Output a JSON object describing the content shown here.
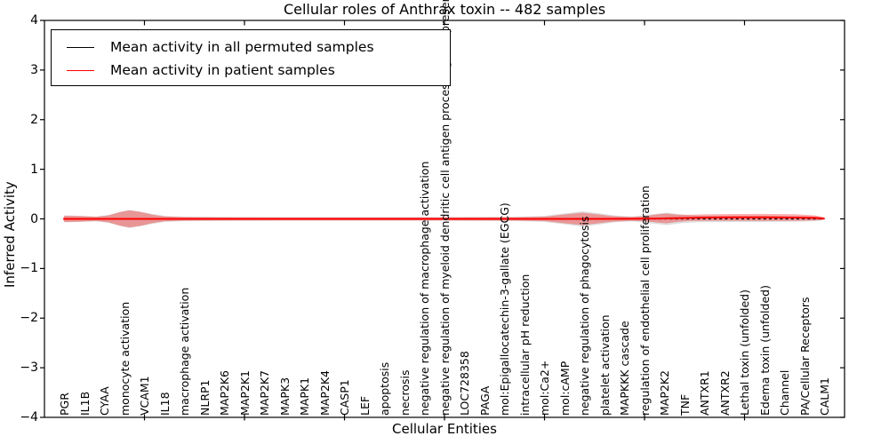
{
  "title": "Cellular roles of Anthrax toxin -- 482 samples",
  "axes": {
    "xlabel": "Cellular Entities",
    "ylabel": "Inferred Activity",
    "yticks": [
      {
        "value": 4,
        "label": "4"
      },
      {
        "value": 3,
        "label": "3"
      },
      {
        "value": 2,
        "label": "2"
      },
      {
        "value": 1,
        "label": "1"
      },
      {
        "value": 0,
        "label": "0"
      },
      {
        "value": -1,
        "label": "−1"
      },
      {
        "value": -2,
        "label": "−2"
      },
      {
        "value": -3,
        "label": "−3"
      },
      {
        "value": -4,
        "label": "−4"
      }
    ],
    "xmajorticks": [
      5,
      10,
      15,
      20,
      25,
      30,
      35
    ]
  },
  "legend": {
    "items": [
      {
        "label": "Mean activity in all permuted samples",
        "color": "#000000"
      },
      {
        "label": "Mean activity in patient samples",
        "color": "#ff0000"
      }
    ]
  },
  "chart_data": {
    "type": "area",
    "title": "Cellular roles of Anthrax toxin -- 482 samples",
    "xlabel": "Cellular Entities",
    "ylabel": "Inferred Activity",
    "xlim": [
      0,
      40
    ],
    "ylim": [
      -4,
      4
    ],
    "grid": false,
    "legend_position": "upper left",
    "categories": [
      "PGR",
      "IL1B",
      "CYAA",
      "monocyte activation",
      "VCAM1",
      "IL18",
      "macrophage activation",
      "NLRP1",
      "MAP2K6",
      "MAP2K1",
      "MAP2K7",
      "MAPK3",
      "MAPK1",
      "MAP2K4",
      "CASP1",
      "LEF",
      "apoptosis",
      "necrosis",
      "negative regulation of macrophage activation",
      "negative regulation of myeloid dendritic cell antigen processing and presentation",
      "LOC728358",
      "PAGA",
      "mol:Epigallocatechin-3-gallate (EGCG)",
      "intracellular pH reduction",
      "mol:Ca2+",
      "mol:cAMP",
      "negative regulation of phagocytosis",
      "platelet activation",
      "MAPKKK cascade",
      "regulation of endothelial cell proliferation",
      "MAP2K2",
      "TNF",
      "ANTXR1",
      "ANTXR2",
      "Lethal toxin (unfolded)",
      "Edema toxin (unfolded)",
      "Channel",
      "PA/Cellular Receptors",
      "CALM1"
    ],
    "series": [
      {
        "name": "mean-permuted-line",
        "label": "Mean activity in all permuted samples",
        "color": "#000000",
        "dash": "3,3.2",
        "width": 1.3,
        "points": [
          [
            0.95,
            0
          ],
          [
            39.0,
            0
          ]
        ]
      },
      {
        "name": "mean-patient-line",
        "label": "Mean activity in patient samples",
        "color": "#ff0000",
        "dash": "",
        "width": 2,
        "points": [
          [
            0.95,
            0
          ],
          [
            5,
            0
          ],
          [
            10,
            0
          ],
          [
            15,
            0
          ],
          [
            20,
            0
          ],
          [
            25,
            0
          ],
          [
            27,
            0
          ],
          [
            29.3,
            0.002
          ],
          [
            30.7,
            0.008
          ],
          [
            31.1,
            0.01
          ],
          [
            32.0,
            0.018
          ],
          [
            33.0,
            0.026
          ],
          [
            34.5,
            0.03
          ],
          [
            36.0,
            0.03
          ],
          [
            37.5,
            0.027
          ],
          [
            38.5,
            0.02
          ],
          [
            39.0,
            0.008
          ]
        ]
      }
    ],
    "bands": [
      {
        "name": "permuted-samples-band",
        "color": "#000000",
        "opacity": 0.13,
        "points": [
          [
            0.93,
            0,
            0.0
          ],
          [
            1.0,
            0,
            0.072
          ],
          [
            1.8,
            0,
            0.062
          ],
          [
            2.6,
            0,
            0.05
          ],
          [
            3.2,
            0,
            0.08
          ],
          [
            4.25,
            0,
            0.185
          ],
          [
            5.4,
            0,
            0.1
          ],
          [
            6.0,
            0,
            0.06
          ],
          [
            7.0,
            0,
            0.045
          ],
          [
            9.0,
            0,
            0.04
          ],
          [
            12,
            0,
            0.038
          ],
          [
            16,
            0,
            0.038
          ],
          [
            20,
            0,
            0.038
          ],
          [
            23.5,
            0,
            0.042
          ],
          [
            25.0,
            0,
            0.06
          ],
          [
            26.0,
            0,
            0.11
          ],
          [
            26.9,
            0,
            0.155
          ],
          [
            27.8,
            0,
            0.11
          ],
          [
            28.6,
            0,
            0.065
          ],
          [
            29.4,
            0,
            0.05
          ],
          [
            30.1,
            0,
            0.08
          ],
          [
            31.1,
            0,
            0.125
          ],
          [
            31.9,
            0,
            0.085
          ],
          [
            32.6,
            0,
            0.068
          ],
          [
            34.5,
            0,
            0.062
          ],
          [
            36.0,
            0,
            0.062
          ],
          [
            37.5,
            0,
            0.058
          ],
          [
            38.6,
            0,
            0.045
          ],
          [
            39.0,
            0,
            0.02
          ],
          [
            39.05,
            0,
            0.0
          ]
        ]
      },
      {
        "name": "patient-samples-band",
        "color": "#ff0000",
        "opacity": 0.32,
        "points": [
          [
            0.93,
            0,
            0.0
          ],
          [
            1.0,
            0,
            0.062
          ],
          [
            1.8,
            0,
            0.055
          ],
          [
            2.6,
            0,
            0.042
          ],
          [
            3.2,
            0,
            0.07
          ],
          [
            3.8,
            0,
            0.14
          ],
          [
            4.25,
            0,
            0.17
          ],
          [
            4.8,
            0,
            0.14
          ],
          [
            5.4,
            0,
            0.085
          ],
          [
            6.0,
            0,
            0.05
          ],
          [
            7.0,
            0,
            0.036
          ],
          [
            9.0,
            0,
            0.032
          ],
          [
            12,
            0,
            0.03
          ],
          [
            16,
            0,
            0.03
          ],
          [
            20,
            0,
            0.03
          ],
          [
            23.5,
            0,
            0.033
          ],
          [
            25.0,
            0,
            0.045
          ],
          [
            26.0,
            0,
            0.09
          ],
          [
            26.9,
            0,
            0.125
          ],
          [
            27.6,
            0,
            0.095
          ],
          [
            28.4,
            0,
            0.055
          ],
          [
            29.3,
            0,
            0.038
          ],
          [
            30.0,
            0.003,
            0.05
          ],
          [
            30.7,
            0.008,
            0.085
          ],
          [
            31.1,
            0.01,
            0.1
          ],
          [
            31.6,
            0.013,
            0.075
          ],
          [
            32.2,
            0.02,
            0.062
          ],
          [
            33.0,
            0.026,
            0.065
          ],
          [
            34.5,
            0.03,
            0.068
          ],
          [
            36.0,
            0.03,
            0.07
          ],
          [
            37.5,
            0.027,
            0.066
          ],
          [
            38.5,
            0.02,
            0.052
          ],
          [
            38.9,
            0.01,
            0.03
          ],
          [
            39.05,
            0.003,
            0.0
          ]
        ]
      }
    ]
  }
}
